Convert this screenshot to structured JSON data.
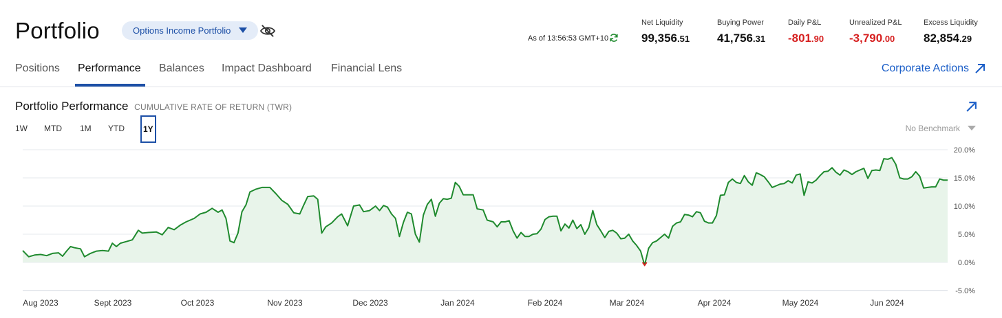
{
  "header": {
    "title": "Portfolio",
    "account": "Options Income Portfolio",
    "as_of": "As of 13:56:53 GMT+10",
    "metrics": [
      {
        "label": "Net Liquidity",
        "int": "99,356",
        "dec": ".51",
        "negative": false
      },
      {
        "label": "Buying Power",
        "int": "41,756",
        "dec": ".31",
        "negative": false
      },
      {
        "label": "Daily P&L",
        "int": "-801",
        "dec": ".90",
        "negative": true
      },
      {
        "label": "Unrealized P&L",
        "int": "-3,790",
        "dec": ".00",
        "negative": true
      },
      {
        "label": "Excess Liquidity",
        "int": "82,854",
        "dec": ".29",
        "negative": false
      }
    ]
  },
  "tabs": [
    "Positions",
    "Performance",
    "Balances",
    "Impact Dashboard",
    "Financial Lens"
  ],
  "active_tab": "Performance",
  "corporate_actions": "Corporate Actions",
  "performance": {
    "title": "Portfolio Performance",
    "subtitle": "CUMULATIVE RATE OF RETURN (TWR)",
    "ranges": [
      "1W",
      "MTD",
      "1M",
      "YTD",
      "1Y"
    ],
    "active_range": "1Y",
    "benchmark": "No Benchmark"
  },
  "colors": {
    "accent": "#1c4fa6",
    "positive": "#1f8a2e",
    "negative": "#d61f1f",
    "area": "#e8f4ea"
  },
  "chart_data": {
    "type": "area",
    "ylim": [
      -5,
      20
    ],
    "yticks": [
      "20.0%",
      "15.0%",
      "10.0%",
      "5.0%",
      "0.0%",
      "-5.0%"
    ],
    "x_labels": [
      "Aug 2023",
      "Sept 2023",
      "Oct 2023",
      "Nov 2023",
      "Dec 2023",
      "Jan 2024",
      "Feb 2024",
      "Mar 2024",
      "Apr 2024",
      "May 2024",
      "Jun 2024"
    ],
    "series": [
      {
        "values": [
          [
            0,
            2.1
          ],
          [
            3,
            1.0
          ],
          [
            6,
            1.3
          ],
          [
            9,
            1.4
          ],
          [
            12,
            1.2
          ],
          [
            15,
            1.6
          ],
          [
            18,
            1.7
          ],
          [
            20,
            1.1
          ],
          [
            22,
            2.0
          ],
          [
            24,
            2.8
          ],
          [
            26,
            2.6
          ],
          [
            29,
            2.4
          ],
          [
            31,
            1.0
          ],
          [
            34,
            1.6
          ],
          [
            37,
            2.0
          ],
          [
            40,
            2.1
          ],
          [
            43,
            2.0
          ],
          [
            45,
            3.4
          ],
          [
            47,
            2.8
          ],
          [
            49,
            3.4
          ],
          [
            52,
            3.7
          ],
          [
            55,
            4.0
          ],
          [
            58,
            5.7
          ],
          [
            60,
            5.2
          ],
          [
            63,
            5.3
          ],
          [
            67,
            5.4
          ],
          [
            70,
            4.9
          ],
          [
            73,
            6.2
          ],
          [
            76,
            5.8
          ],
          [
            79,
            6.6
          ],
          [
            82,
            7.2
          ],
          [
            86,
            7.8
          ],
          [
            89,
            8.6
          ],
          [
            92,
            8.9
          ],
          [
            95,
            9.6
          ],
          [
            98,
            8.9
          ],
          [
            100,
            9.3
          ],
          [
            102,
            7.8
          ],
          [
            104,
            3.8
          ],
          [
            106,
            3.5
          ],
          [
            108,
            5.2
          ],
          [
            110,
            9.0
          ],
          [
            112,
            10.2
          ],
          [
            114,
            12.5
          ],
          [
            117,
            13.0
          ],
          [
            120,
            13.3
          ],
          [
            124,
            13.3
          ],
          [
            127,
            12.2
          ],
          [
            130,
            11.0
          ],
          [
            133,
            10.3
          ],
          [
            136,
            8.8
          ],
          [
            139,
            8.6
          ],
          [
            141,
            10.2
          ],
          [
            143,
            11.7
          ],
          [
            146,
            11.8
          ],
          [
            148,
            11.2
          ],
          [
            150,
            5.2
          ],
          [
            152,
            6.3
          ],
          [
            155,
            7.0
          ],
          [
            158,
            8.1
          ],
          [
            160,
            8.6
          ],
          [
            163,
            6.5
          ],
          [
            166,
            10.0
          ],
          [
            169,
            10.2
          ],
          [
            171,
            9.0
          ],
          [
            174,
            9.2
          ],
          [
            177,
            10.0
          ],
          [
            179,
            9.2
          ],
          [
            181,
            10.1
          ],
          [
            183,
            9.8
          ],
          [
            185,
            8.6
          ],
          [
            187,
            7.8
          ],
          [
            189,
            4.6
          ],
          [
            191,
            7.1
          ],
          [
            193,
            8.9
          ],
          [
            195,
            8.6
          ],
          [
            197,
            5.0
          ],
          [
            199,
            3.6
          ],
          [
            201,
            8.4
          ],
          [
            203,
            10.3
          ],
          [
            205,
            11.2
          ],
          [
            207,
            8.2
          ],
          [
            209,
            10.5
          ],
          [
            211,
            11.3
          ],
          [
            213,
            11.2
          ],
          [
            215,
            11.4
          ],
          [
            217,
            14.2
          ],
          [
            219,
            13.5
          ],
          [
            221,
            12.0
          ],
          [
            223,
            12.0
          ],
          [
            226,
            12.0
          ],
          [
            228,
            9.5
          ],
          [
            231,
            9.3
          ],
          [
            233,
            7.5
          ],
          [
            236,
            7.2
          ],
          [
            238,
            6.3
          ],
          [
            240,
            7.2
          ],
          [
            242,
            7.2
          ],
          [
            244,
            7.4
          ],
          [
            246,
            5.6
          ],
          [
            248,
            4.3
          ],
          [
            250,
            5.3
          ],
          [
            252,
            4.6
          ],
          [
            254,
            4.6
          ],
          [
            256,
            5.0
          ],
          [
            258,
            5.1
          ],
          [
            260,
            5.9
          ],
          [
            262,
            7.6
          ],
          [
            264,
            8.1
          ],
          [
            266,
            8.2
          ],
          [
            268,
            8.2
          ],
          [
            270,
            5.6
          ],
          [
            272,
            6.8
          ],
          [
            274,
            6.1
          ],
          [
            276,
            7.5
          ],
          [
            278,
            6.0
          ],
          [
            280,
            6.7
          ],
          [
            282,
            5.0
          ],
          [
            284,
            6.2
          ],
          [
            286,
            9.2
          ],
          [
            288,
            6.7
          ],
          [
            290,
            5.6
          ],
          [
            292,
            4.4
          ],
          [
            294,
            5.5
          ],
          [
            296,
            5.7
          ],
          [
            298,
            5.2
          ],
          [
            300,
            4.2
          ],
          [
            302,
            4.3
          ],
          [
            304,
            5.0
          ],
          [
            306,
            3.8
          ],
          [
            308,
            3.0
          ],
          [
            310,
            2.0
          ],
          [
            312,
            -0.5
          ],
          [
            314,
            2.5
          ],
          [
            316,
            3.5
          ],
          [
            318,
            3.8
          ],
          [
            320,
            4.4
          ],
          [
            322,
            5.0
          ],
          [
            324,
            4.3
          ],
          [
            326,
            6.4
          ],
          [
            328,
            7.0
          ],
          [
            330,
            7.2
          ],
          [
            332,
            8.5
          ],
          [
            334,
            8.4
          ],
          [
            336,
            8.1
          ],
          [
            338,
            9.0
          ],
          [
            340,
            8.8
          ],
          [
            342,
            7.3
          ],
          [
            344,
            7.0
          ],
          [
            346,
            7.0
          ],
          [
            348,
            8.3
          ],
          [
            350,
            11.9
          ],
          [
            352,
            12.0
          ],
          [
            354,
            14.2
          ],
          [
            356,
            14.8
          ],
          [
            358,
            14.2
          ],
          [
            360,
            14.0
          ],
          [
            362,
            15.4
          ],
          [
            364,
            14.3
          ],
          [
            366,
            13.7
          ],
          [
            368,
            15.9
          ],
          [
            370,
            15.6
          ],
          [
            372,
            15.2
          ],
          [
            374,
            14.3
          ],
          [
            376,
            13.3
          ],
          [
            378,
            13.6
          ],
          [
            380,
            13.9
          ],
          [
            382,
            14.0
          ],
          [
            384,
            14.5
          ],
          [
            386,
            14.1
          ],
          [
            388,
            15.5
          ],
          [
            390,
            15.7
          ],
          [
            392,
            11.9
          ],
          [
            394,
            14.3
          ],
          [
            396,
            14.1
          ],
          [
            398,
            14.6
          ],
          [
            400,
            15.4
          ],
          [
            402,
            16.1
          ],
          [
            404,
            16.2
          ],
          [
            406,
            16.8
          ],
          [
            408,
            16.0
          ],
          [
            410,
            15.5
          ],
          [
            412,
            16.4
          ],
          [
            414,
            16.1
          ],
          [
            416,
            15.6
          ],
          [
            418,
            16.1
          ],
          [
            420,
            16.4
          ],
          [
            422,
            16.7
          ],
          [
            424,
            14.9
          ],
          [
            426,
            16.3
          ],
          [
            428,
            16.4
          ],
          [
            430,
            16.3
          ],
          [
            432,
            18.4
          ],
          [
            434,
            18.3
          ],
          [
            436,
            18.6
          ],
          [
            438,
            17.4
          ],
          [
            440,
            15.0
          ],
          [
            442,
            14.8
          ],
          [
            444,
            14.8
          ],
          [
            446,
            15.2
          ],
          [
            448,
            16.1
          ],
          [
            450,
            15.3
          ],
          [
            452,
            13.2
          ],
          [
            454,
            13.3
          ],
          [
            456,
            13.4
          ],
          [
            458,
            13.4
          ],
          [
            460,
            14.8
          ],
          [
            462,
            14.6
          ],
          [
            464,
            14.6
          ]
        ]
      }
    ]
  }
}
